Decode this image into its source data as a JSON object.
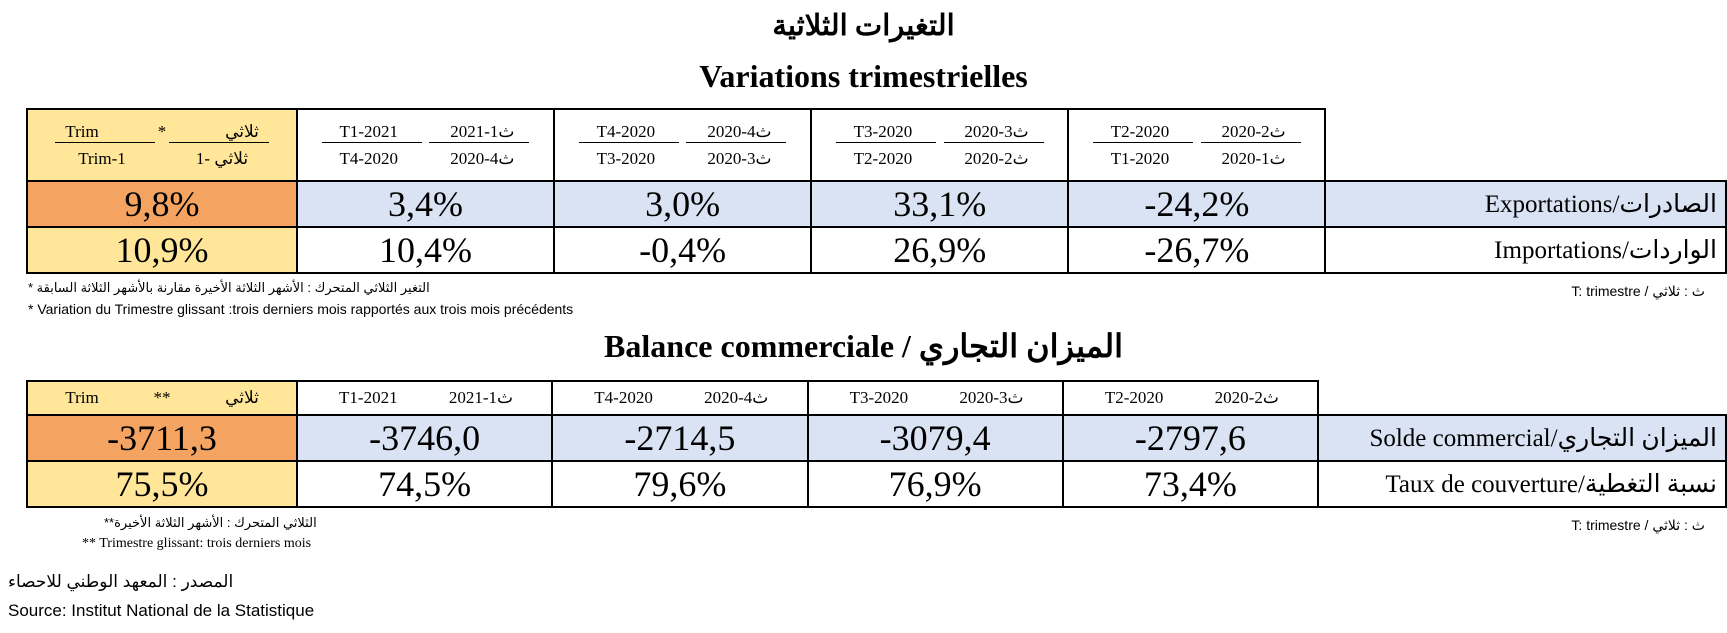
{
  "titles": {
    "arabic": "التغيرات الثلاثية",
    "french": "Variations trimestrielles",
    "balance": "Balance commerciale / الميزان التجاري"
  },
  "table1": {
    "rolling_header": {
      "top_ar": "ثلاثي",
      "top_mark": "*",
      "top_fr": "Trim",
      "bottom_ar": "ثلاثي -1",
      "bottom_fr": "Trim-1"
    },
    "columns": [
      {
        "top_fr": "T1-2021",
        "top_ar": "ث1-2021",
        "bottom_fr": "T4-2020",
        "bottom_ar": "ث4-2020"
      },
      {
        "top_fr": "T4-2020",
        "top_ar": "ث4-2020",
        "bottom_fr": "T3-2020",
        "bottom_ar": "ث3-2020"
      },
      {
        "top_fr": "T3-2020",
        "top_ar": "ث3-2020",
        "bottom_fr": "T2-2020",
        "bottom_ar": "ث2-2020"
      },
      {
        "top_fr": "T2-2020",
        "top_ar": "ث2-2020",
        "bottom_fr": "T1-2020",
        "bottom_ar": "ث1-2020"
      }
    ],
    "rows": [
      {
        "label": "الصادرات/Exportations",
        "rolling": "9,8%",
        "values": [
          "3,4%",
          "3,0%",
          "33,1%",
          "-24,2%"
        ]
      },
      {
        "label": "الواردات/Importations",
        "rolling": "10,9%",
        "values": [
          "10,4%",
          "-0,4%",
          "26,9%",
          "-26,7%"
        ]
      }
    ],
    "note_ar": "التغير الثلاثي المتحرك : الأشهر الثلاثة الأخيرة مقارنة بالأشهر الثلاثة السابقة *",
    "note_fr": "* Variation du Trimestre glissant :trois derniers mois  rapportés aux trois mois précédents",
    "legend": "ث : ثلاثي / T: trimestre"
  },
  "table2": {
    "rolling_header": {
      "ar": "ثلاثي",
      "mark": "**",
      "fr": "Trim"
    },
    "columns": [
      {
        "fr": "T1-2021",
        "ar": "ث1-2021"
      },
      {
        "fr": "T4-2020",
        "ar": "ث4-2020"
      },
      {
        "fr": "T3-2020",
        "ar": "ث3-2020"
      },
      {
        "fr": "T2-2020",
        "ar": "ث2-2020"
      }
    ],
    "rows": [
      {
        "label": "الميزان التجاري/Solde commercial",
        "rolling": "-3711,3",
        "values": [
          "-3746,0",
          "-2714,5",
          "-3079,4",
          "-2797,6"
        ]
      },
      {
        "label": "نسبة التغطية/Taux de couverture",
        "rolling": "75,5%",
        "values": [
          "74,5%",
          "79,6%",
          "76,9%",
          "73,4%"
        ]
      }
    ],
    "note_ar": "الثلاثي المتحرك : الأشهر الثلاثة الأخيرة**",
    "note_fr": "** Trimestre glissant: trois derniers mois",
    "legend": "ث : ثلاثي / T: trimestre"
  },
  "source": {
    "ar": "المصدر : المعهد الوطني للاحصاء",
    "fr": "Source: Institut National de la Statistique"
  },
  "colors": {
    "yellow": "#ffe699",
    "orange": "#f4a460",
    "blue": "#dae3f3"
  }
}
